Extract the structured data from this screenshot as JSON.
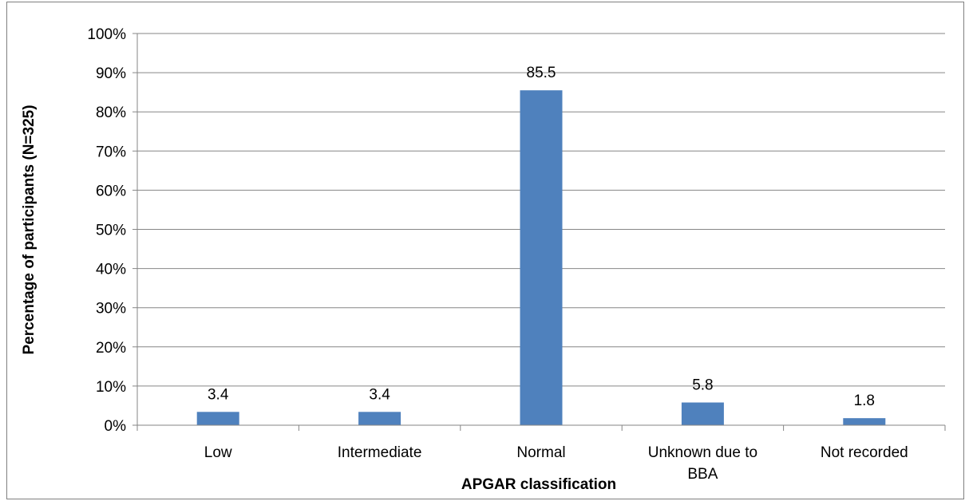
{
  "chart_data": {
    "type": "bar",
    "categories": [
      [
        "Low"
      ],
      [
        "Intermediate"
      ],
      [
        "Normal"
      ],
      [
        "Unknown due to",
        "BBA"
      ],
      [
        "Not recorded"
      ]
    ],
    "values": [
      3.4,
      3.4,
      85.5,
      5.8,
      1.8
    ],
    "data_labels": [
      "3.4",
      "3.4",
      "85.5",
      "5.8",
      "1.8"
    ],
    "xlabel": "APGAR classification",
    "ylabel": "Percentage of  participants (N=325)",
    "y_ticks": [
      "0%",
      "10%",
      "20%",
      "30%",
      "40%",
      "50%",
      "60%",
      "70%",
      "80%",
      "90%",
      "100%"
    ],
    "ylim": [
      0,
      100
    ],
    "grid": true,
    "legend": false,
    "bar_color": "#4f81bd",
    "grid_color": "#868686"
  }
}
